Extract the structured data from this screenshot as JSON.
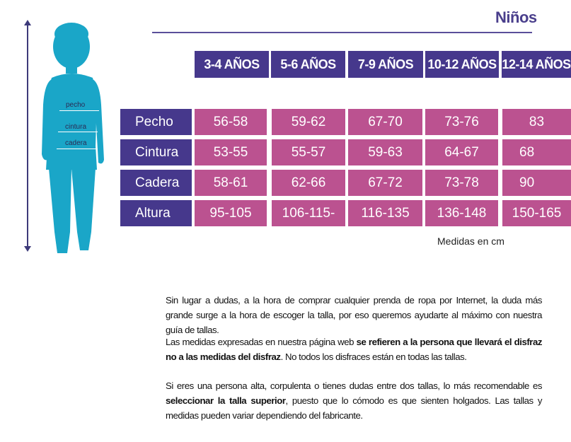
{
  "title": "Niños",
  "figure": {
    "labels": {
      "chest": "pecho",
      "waist": "cintura",
      "hip": "cadera"
    }
  },
  "table": {
    "headers": [
      "3-4 AÑOS",
      "5-6 AÑOS",
      "7-9 AÑOS",
      "10-12 AÑOS",
      "12-14 AÑOS"
    ],
    "rows": [
      {
        "label": "Pecho",
        "values": [
          "56-58",
          "59-62",
          "67-70",
          "73-76",
          "83"
        ]
      },
      {
        "label": "Cintura",
        "values": [
          "53-55",
          "55-57",
          "59-63",
          "64-67",
          "68"
        ]
      },
      {
        "label": "Cadera",
        "values": [
          "58-61",
          "62-66",
          "67-72",
          "73-78",
          "90"
        ]
      },
      {
        "label": "Altura",
        "values": [
          "95-105",
          "106-115-",
          "116-135",
          "136-148",
          "150-165"
        ]
      }
    ],
    "note": "Medidas en cm"
  },
  "paragraphs": {
    "p1": "Sin lugar a dudas, a la hora de comprar cualquier prenda de ropa por Internet, la duda más grande surge a la hora de escoger la talla, por eso queremos ayudarte al máximo con nuestra guía de tallas.",
    "p2_a": "Las medidas expresadas en nuestra página web ",
    "p2_b": "se refieren a la persona que llevará el disfraz no a las medidas del disfraz",
    "p2_c": ". No todos los disfraces están en todas las tallas.",
    "p3_a": "Si eres una persona alta, corpulenta o tienes dudas entre dos tallas, lo más recomendable es ",
    "p3_b": "seleccionar la talla superior",
    "p3_c": ", puesto que lo cómodo es que sienten holgados. Las tallas y medidas pueden variar dependiendo del fabricante."
  },
  "colors": {
    "header": "#46388c",
    "cell": "#bb5290",
    "figure": "#1aa6c8",
    "title": "#4a3f8c"
  }
}
